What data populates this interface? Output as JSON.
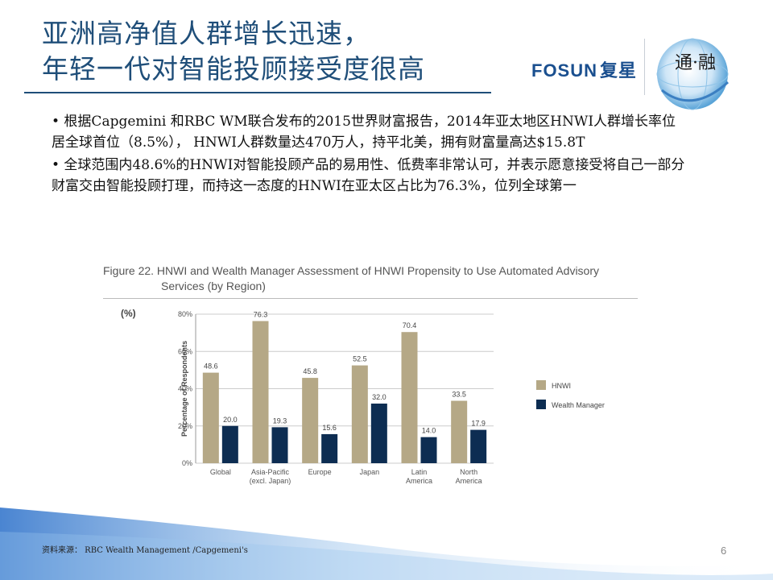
{
  "slide": {
    "title_line1": "亚洲高净值人群增长迅速，",
    "title_line2": "年轻一代对智能投顾接受度很高",
    "logo_text": "FOSUN",
    "logo_cn": "复星",
    "logo_globe_text": "通·融",
    "bullet1": "• 根据Capgemini 和RBC WM联合发布的2015世界财富报告，2014年亚太地区HNWI人群增长率位居全球首位（8.5%）， HNWI人群数量达470万人，持平北美，拥有财富量高达$15.8T",
    "bullet2": "• 全球范围内48.6%的HNWI对智能投顾产品的易用性、低费率非常认可，并表示愿意接受将自己一部分财富交由智能投顾打理，而持这一态度的HNWI在亚太区占比为76.3%，位列全球第一",
    "source": "资料来源： RBC Wealth Management /Capgemeni's",
    "page_number": "6"
  },
  "chart_data": {
    "type": "bar",
    "title_line1": "Figure 22. HNWI and Wealth Manager Assessment of HNWI Propensity to Use Automated Advisory",
    "title_line2": "Services (by Region)",
    "unit_label": "(%)",
    "ylabel": "Percentage of Respondents",
    "ylim": [
      0,
      80
    ],
    "yticks": [
      "0%",
      "20%",
      "40%",
      "60%",
      "80%"
    ],
    "grid": true,
    "legend_position": "right",
    "categories": [
      [
        "Global"
      ],
      [
        "Asia-Pacific",
        "(excl. Japan)"
      ],
      [
        "Europe"
      ],
      [
        "Japan"
      ],
      [
        "Latin",
        "America"
      ],
      [
        "North",
        "America"
      ]
    ],
    "series": [
      {
        "name": "HNWI",
        "color": "#b5a886",
        "values": [
          48.6,
          76.3,
          45.8,
          52.5,
          70.4,
          33.5
        ]
      },
      {
        "name": "Wealth Manager",
        "color": "#0d2d52",
        "values": [
          20.0,
          19.3,
          15.6,
          32.0,
          14.0,
          17.9
        ]
      }
    ],
    "value_labels": [
      [
        "48.6",
        "76.3",
        "45.8",
        "52.5",
        "70.4",
        "33.5"
      ],
      [
        "20.0",
        "19.3",
        "15.6",
        "32.0",
        "14.0",
        "17.9"
      ]
    ]
  }
}
